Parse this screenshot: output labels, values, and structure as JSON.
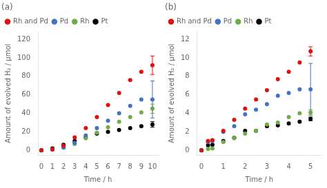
{
  "chart_data": [
    {
      "type": "scatter",
      "title": "(a)",
      "xlabel": "Time / h",
      "ylabel": "Amount of evolved H₂ / μmol",
      "xlim": [
        -0.3,
        10.5
      ],
      "ylim": [
        -5,
        128
      ],
      "xticks": [
        0,
        1,
        2,
        3,
        4,
        5,
        6,
        7,
        8,
        9,
        10
      ],
      "yticks": [
        0,
        20,
        40,
        60,
        80,
        100,
        120
      ],
      "grid": false,
      "legend": "upper left",
      "marker": "circle",
      "x": [
        0,
        1,
        2,
        3,
        4,
        5,
        6,
        7,
        8,
        9,
        10
      ],
      "series": [
        {
          "name": "Rh and Pd",
          "color": "#e01010",
          "values": [
            0,
            1,
            5,
            14,
            24,
            36,
            49,
            62,
            76,
            85,
            92
          ],
          "yerr": [
            null,
            null,
            null,
            null,
            null,
            null,
            null,
            null,
            null,
            null,
            10
          ]
        },
        {
          "name": "Pd",
          "color": "#4472c4",
          "values": [
            0,
            1,
            3,
            8,
            16,
            24,
            32,
            40,
            48,
            55,
            55
          ],
          "yerr": [
            null,
            null,
            null,
            null,
            null,
            null,
            null,
            null,
            null,
            null,
            20
          ]
        },
        {
          "name": "Rh",
          "color": "#70ad47",
          "values": [
            0,
            1,
            3,
            7,
            13,
            19,
            25,
            31,
            36,
            41,
            45
          ],
          "yerr": [
            null,
            null,
            null,
            null,
            null,
            null,
            null,
            null,
            null,
            null,
            5
          ]
        },
        {
          "name": "Pt",
          "color": "#000000",
          "values": [
            0,
            2,
            6,
            10,
            14,
            18,
            20,
            22,
            24,
            26,
            28
          ],
          "yerr": [
            null,
            null,
            null,
            null,
            null,
            null,
            null,
            null,
            null,
            null,
            3
          ]
        }
      ]
    },
    {
      "type": "scatter",
      "title": "(b)",
      "xlabel": "Time / h",
      "ylabel": "Amount of evolved H₂ / μmol",
      "xlim": [
        -0.2,
        5.5
      ],
      "ylim": [
        -0.5,
        12.8
      ],
      "xticks": [
        0,
        1,
        2,
        3,
        4,
        5
      ],
      "yticks": [
        0,
        2,
        4,
        6,
        8,
        10,
        12
      ],
      "grid": false,
      "legend": "upper left",
      "marker": "circle",
      "x": [
        0,
        0.3,
        0.5,
        1.0,
        1.5,
        2.0,
        2.5,
        3.0,
        3.5,
        4.0,
        4.5,
        5.0
      ],
      "series": [
        {
          "name": "Rh and Pd",
          "color": "#e01010",
          "values": [
            0,
            1.0,
            1.1,
            2.1,
            3.3,
            4.5,
            5.5,
            6.5,
            7.7,
            8.5,
            9.5,
            10.7
          ],
          "yerr": [
            null,
            null,
            null,
            null,
            null,
            null,
            null,
            null,
            null,
            null,
            null,
            0.5
          ]
        },
        {
          "name": "Pd",
          "color": "#4472c4",
          "values": [
            0,
            0.9,
            1.0,
            2.0,
            2.6,
            3.9,
            4.4,
            5.0,
            5.9,
            6.2,
            6.6,
            6.6
          ],
          "yerr": [
            null,
            null,
            null,
            null,
            null,
            null,
            null,
            null,
            null,
            null,
            null,
            2.8
          ]
        },
        {
          "name": "Rh",
          "color": "#70ad47",
          "values": [
            0,
            0.15,
            0.2,
            0.9,
            1.3,
            1.8,
            2.1,
            2.8,
            3.0,
            3.6,
            4.0,
            4.1
          ],
          "yerr": [
            null,
            null,
            null,
            null,
            null,
            null,
            null,
            null,
            null,
            null,
            null,
            0.3
          ]
        },
        {
          "name": "Pt",
          "color": "#000000",
          "values": [
            0,
            0.55,
            0.6,
            1.0,
            1.35,
            2.1,
            2.1,
            2.6,
            2.7,
            2.9,
            3.1,
            3.4
          ],
          "yerr": [
            null,
            null,
            null,
            null,
            null,
            null,
            null,
            null,
            null,
            null,
            null,
            0.2
          ]
        }
      ]
    }
  ]
}
